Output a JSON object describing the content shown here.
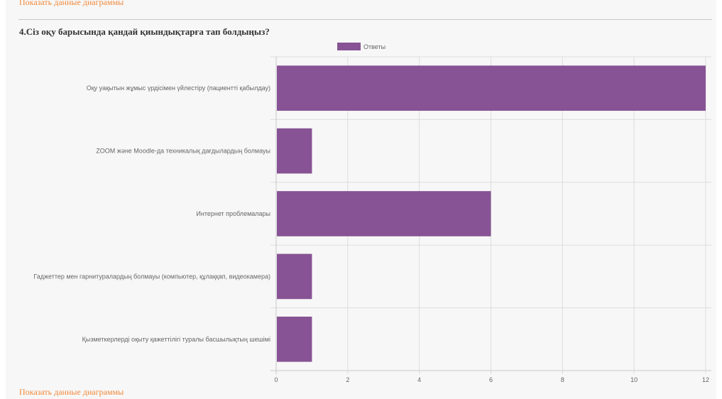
{
  "header": {
    "top_link": "Показать данные диаграммы",
    "question_title": "4.Сіз оқу барысында қандай қиындықтарға тап болдыңыз?"
  },
  "footer": {
    "bottom_link": "Показать данные диаграммы"
  },
  "chart_data": {
    "type": "bar",
    "orientation": "horizontal",
    "categories": [
      "Оқу уақытын жұмыс үрдісімен үйлестіру (пациентті қабылдау)",
      "ZOOM және Moodle-да техникалық дағдылардың болмауы",
      "Интернет проблемалары",
      "Гаджеттер мен гарнитуралардың болмауы (компьютер, құлаққап, видеокамера)",
      "Қызметкерлерді оқыту қажеттілігі туралы басшылықтың шешімі"
    ],
    "series": [
      {
        "name": "Ответы",
        "values": [
          12,
          1,
          6,
          1,
          1
        ]
      }
    ],
    "xlim": [
      0,
      12
    ],
    "xticks": [
      "0",
      "2",
      "4",
      "6",
      "8",
      "10",
      "12"
    ],
    "grid": true,
    "legend": "top",
    "colors": {
      "bar": "#875394",
      "grid": "#dddddd"
    }
  }
}
